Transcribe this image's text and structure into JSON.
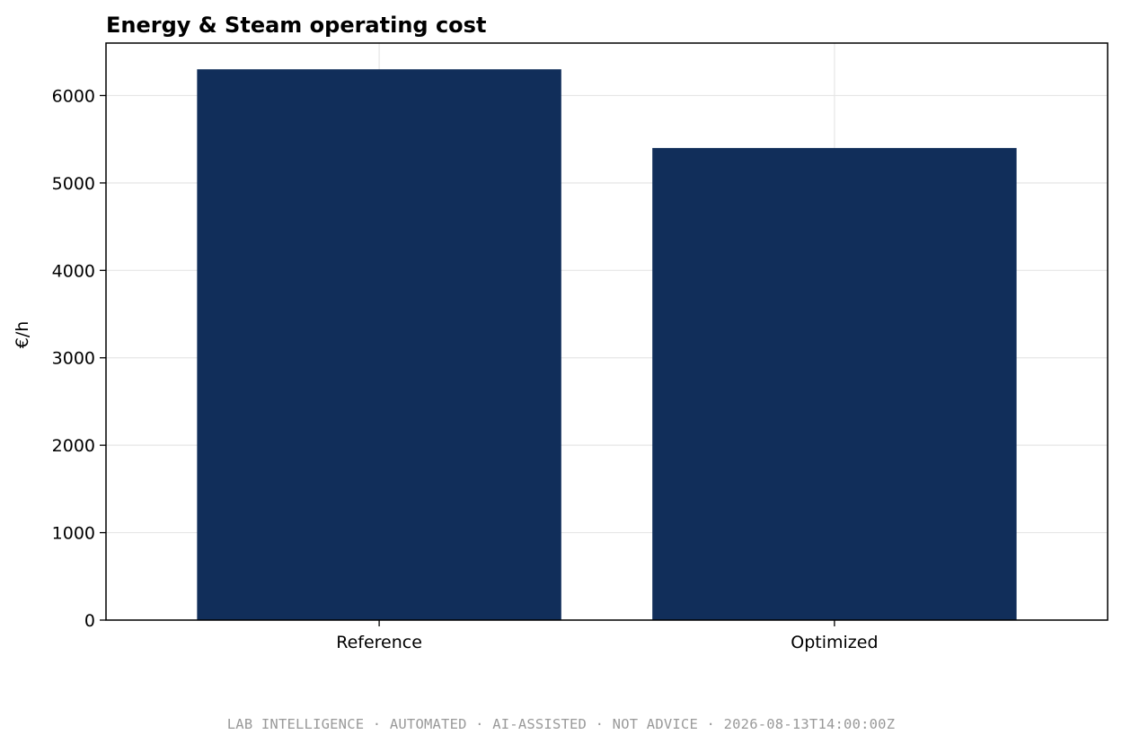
{
  "chart_data": {
    "type": "bar",
    "title": "Energy & Steam operating cost",
    "xlabel": "",
    "ylabel": "€/h",
    "categories": [
      "Reference",
      "Optimized"
    ],
    "values": [
      6300,
      5400
    ],
    "ylim": [
      0,
      6600
    ],
    "yticks": [
      0,
      1000,
      2000,
      3000,
      4000,
      5000,
      6000
    ],
    "grid": true,
    "bar_color": "#112e5a"
  },
  "footer": {
    "text": "LAB INTELLIGENCE · AUTOMATED · AI-ASSISTED · NOT ADVICE · 2026-08-13T14:00:00Z"
  }
}
